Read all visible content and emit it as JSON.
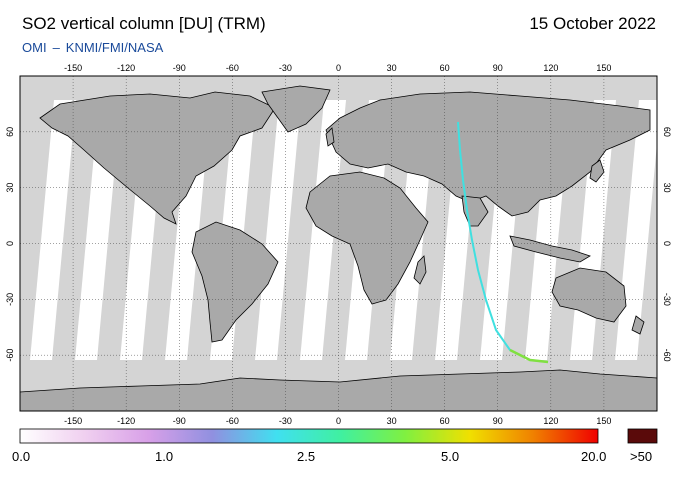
{
  "header": {
    "title": "SO2 vertical column [DU] (TRM)",
    "date": "15 October 2022",
    "credit_left": "OMI",
    "credit_separator": "–",
    "credit_right": "KNMI/FMI/NASA"
  },
  "map": {
    "projection": "equirectangular",
    "lon_range": [
      -180,
      180
    ],
    "lat_range": [
      -90,
      90
    ],
    "lon_ticks": [
      "-150",
      "-120",
      "-90",
      "-60",
      "-30",
      "0",
      "30",
      "60",
      "90",
      "120",
      "150"
    ],
    "lat_ticks_left": [
      "60",
      "30",
      "0",
      "-30",
      "-60"
    ],
    "lat_ticks_right": [
      "60",
      "30",
      "0",
      "-30",
      "-60"
    ],
    "colors": {
      "land": "#a9a9a9",
      "ocean_missing": "#d4d4d4",
      "polar_night": "#d2d2d2",
      "coastline": "#000000",
      "swath": "#ffffff"
    }
  },
  "colorbar": {
    "labels": [
      "0.0",
      "1.0",
      "2.5",
      "5.0",
      "20.0",
      ">50"
    ],
    "stops": [
      "#ffffff",
      "#f0d0f0",
      "#d8a0e8",
      "#9090e0",
      "#40e0f0",
      "#40f0a0",
      "#80f040",
      "#f0e000",
      "#f08000",
      "#f00000"
    ],
    "overflow_color": "#5a0a0a"
  }
}
